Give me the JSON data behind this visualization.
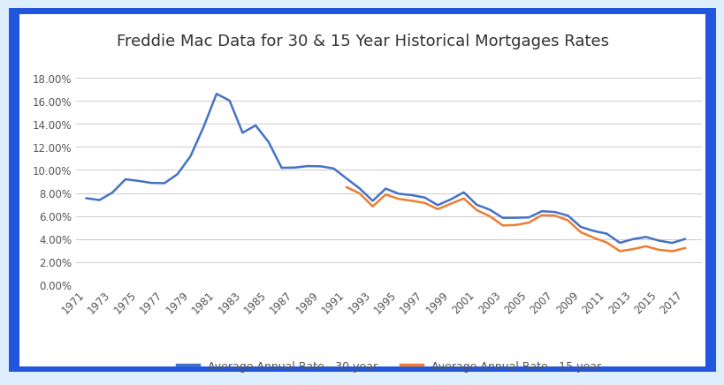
{
  "title": "Freddie Mac Data for 30 & 15 Year Historical Mortgages Rates",
  "years_30": [
    1971,
    1972,
    1973,
    1974,
    1975,
    1976,
    1977,
    1978,
    1979,
    1980,
    1981,
    1982,
    1983,
    1984,
    1985,
    1986,
    1987,
    1988,
    1989,
    1990,
    1991,
    1992,
    1993,
    1994,
    1995,
    1996,
    1997,
    1998,
    1999,
    2000,
    2001,
    2002,
    2003,
    2004,
    2005,
    2006,
    2007,
    2008,
    2009,
    2010,
    2011,
    2012,
    2013,
    2014,
    2015,
    2016,
    2017
  ],
  "rates_30": [
    7.54,
    7.38,
    8.04,
    9.19,
    9.05,
    8.87,
    8.85,
    9.64,
    11.2,
    13.74,
    16.63,
    16.04,
    13.24,
    13.88,
    12.43,
    10.19,
    10.21,
    10.34,
    10.32,
    10.13,
    9.25,
    8.39,
    7.31,
    8.38,
    7.93,
    7.81,
    7.6,
    6.94,
    7.44,
    8.05,
    6.97,
    6.54,
    5.83,
    5.84,
    5.87,
    6.41,
    6.34,
    6.03,
    5.04,
    4.69,
    4.45,
    3.66,
    3.98,
    4.17,
    3.85,
    3.65,
    3.99
  ],
  "years_15": [
    1991,
    1992,
    1993,
    1994,
    1995,
    1996,
    1997,
    1998,
    1999,
    2000,
    2001,
    2002,
    2003,
    2004,
    2005,
    2006,
    2007,
    2008,
    2009,
    2010,
    2011,
    2012,
    2013,
    2014,
    2015,
    2016,
    2017
  ],
  "rates_15": [
    8.5,
    7.96,
    6.83,
    7.86,
    7.48,
    7.32,
    7.13,
    6.59,
    7.06,
    7.52,
    6.5,
    5.98,
    5.17,
    5.21,
    5.42,
    6.07,
    6.03,
    5.62,
    4.57,
    4.1,
    3.68,
    2.93,
    3.11,
    3.36,
    3.05,
    2.93,
    3.2
  ],
  "line_color_30": "#4472C4",
  "line_color_15": "#ED7D31",
  "fig_background": "#DDEEFF",
  "plot_background": "#FFFFFF",
  "border_color": "#2255DD",
  "ylim": [
    0.0,
    0.19
  ],
  "ytick_values": [
    0.0,
    0.02,
    0.04,
    0.06,
    0.08,
    0.1,
    0.12,
    0.14,
    0.16,
    0.18
  ],
  "ytick_labels": [
    "0.00%",
    "2.00%",
    "4.00%",
    "6.00%",
    "8.00%",
    "10.00%",
    "12.00%",
    "14.00%",
    "16.00%",
    "18.00%"
  ],
  "legend_30": "Average Annual Rate - 30 year",
  "legend_15": "Average Annual Rate - 15 year",
  "title_fontsize": 13,
  "axis_fontsize": 8.5,
  "legend_fontsize": 9,
  "tick_color": "#555555",
  "grid_color": "#CCCCCC"
}
